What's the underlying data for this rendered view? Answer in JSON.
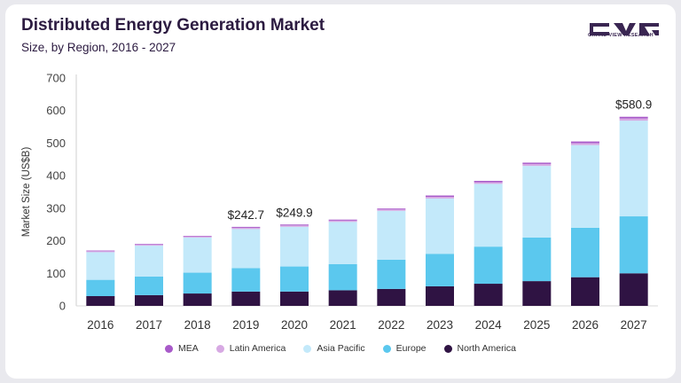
{
  "header": {
    "title": "Distributed Energy Generation Market",
    "subtitle": "Size, by Region, 2016 - 2027",
    "brand": "GRAND VIEW RESEARCH"
  },
  "colors": {
    "north_america": "#2f1343",
    "europe": "#5bc8ee",
    "asia_pacific": "#c3e9fa",
    "latin_america": "#d7a9e3",
    "mea": "#a85ac9"
  },
  "chart_data": {
    "type": "bar",
    "stacked": true,
    "title": "Distributed Energy Generation Market",
    "subtitle": "Size, by Region, 2016 - 2027",
    "xlabel": "",
    "ylabel": "Market Size (US$B)",
    "ylim": [
      0,
      700
    ],
    "yticks": [
      0,
      100,
      200,
      300,
      400,
      500,
      600,
      700
    ],
    "grid": false,
    "legend_position": "bottom",
    "categories": [
      "2016",
      "2017",
      "2018",
      "2019",
      "2020",
      "2021",
      "2022",
      "2023",
      "2024",
      "2025",
      "2026",
      "2027"
    ],
    "series": [
      {
        "name": "North America",
        "color": "#2f1343",
        "values": [
          30,
          33,
          38,
          44,
          44,
          48,
          52,
          60,
          68,
          76,
          88,
          100
        ]
      },
      {
        "name": "Europe",
        "color": "#5bc8ee",
        "values": [
          50,
          57,
          64,
          72,
          77,
          80,
          90,
          100,
          114,
          134,
          152,
          175
        ]
      },
      {
        "name": "Asia Pacific",
        "color": "#c3e9fa",
        "values": [
          85,
          95,
          108,
          120,
          122,
          130,
          150,
          170,
          193,
          220,
          254,
          294
        ]
      },
      {
        "name": "Latin America",
        "color": "#d7a9e3",
        "values": [
          3,
          3,
          3,
          4,
          4,
          4,
          4,
          5,
          5,
          6,
          6,
          7
        ]
      },
      {
        "name": "MEA",
        "color": "#a85ac9",
        "values": [
          2,
          2,
          2,
          2.7,
          2.9,
          3,
          3,
          4,
          4,
          4,
          5,
          4.9
        ]
      }
    ],
    "annotations": [
      {
        "category": "2019",
        "text": "$242.7"
      },
      {
        "category": "2020",
        "text": "$249.9"
      },
      {
        "category": "2027",
        "text": "$580.9"
      }
    ],
    "legend_order": [
      "MEA",
      "Latin America",
      "Asia Pacific",
      "Europe",
      "North America"
    ]
  }
}
